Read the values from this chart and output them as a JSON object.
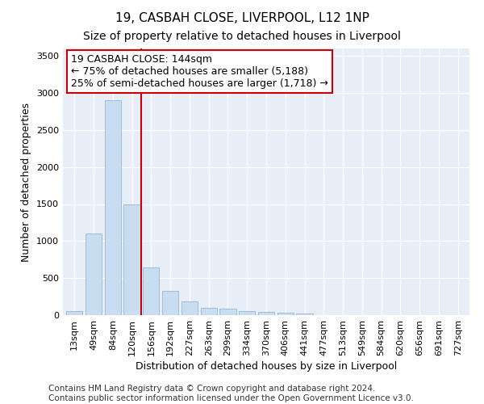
{
  "title": "19, CASBAH CLOSE, LIVERPOOL, L12 1NP",
  "subtitle": "Size of property relative to detached houses in Liverpool",
  "xlabel": "Distribution of detached houses by size in Liverpool",
  "ylabel": "Number of detached properties",
  "categories": [
    "13sqm",
    "49sqm",
    "84sqm",
    "120sqm",
    "156sqm",
    "192sqm",
    "227sqm",
    "263sqm",
    "299sqm",
    "334sqm",
    "370sqm",
    "406sqm",
    "441sqm",
    "477sqm",
    "513sqm",
    "549sqm",
    "584sqm",
    "620sqm",
    "656sqm",
    "691sqm",
    "727sqm"
  ],
  "values": [
    50,
    1100,
    2900,
    1500,
    640,
    330,
    190,
    100,
    90,
    55,
    45,
    35,
    20,
    5,
    5,
    5,
    0,
    0,
    0,
    0,
    0
  ],
  "bar_color": "#c9ddf0",
  "bar_edge_color": "#a0bdd8",
  "vline_color": "#cc0000",
  "annotation_text_line1": "19 CASBAH CLOSE: 144sqm",
  "annotation_text_line2": "← 75% of detached houses are smaller (5,188)",
  "annotation_text_line3": "25% of semi-detached houses are larger (1,718) →",
  "annotation_box_color": "#cc0000",
  "ylim": [
    0,
    3600
  ],
  "yticks": [
    0,
    500,
    1000,
    1500,
    2000,
    2500,
    3000,
    3500
  ],
  "bg_color": "#e8eef8",
  "grid_color": "#ffffff",
  "footer_line1": "Contains HM Land Registry data © Crown copyright and database right 2024.",
  "footer_line2": "Contains public sector information licensed under the Open Government Licence v3.0.",
  "title_fontsize": 11,
  "subtitle_fontsize": 10,
  "xlabel_fontsize": 9,
  "ylabel_fontsize": 9,
  "tick_fontsize": 8,
  "footer_fontsize": 7.5,
  "ann_fontsize": 9
}
